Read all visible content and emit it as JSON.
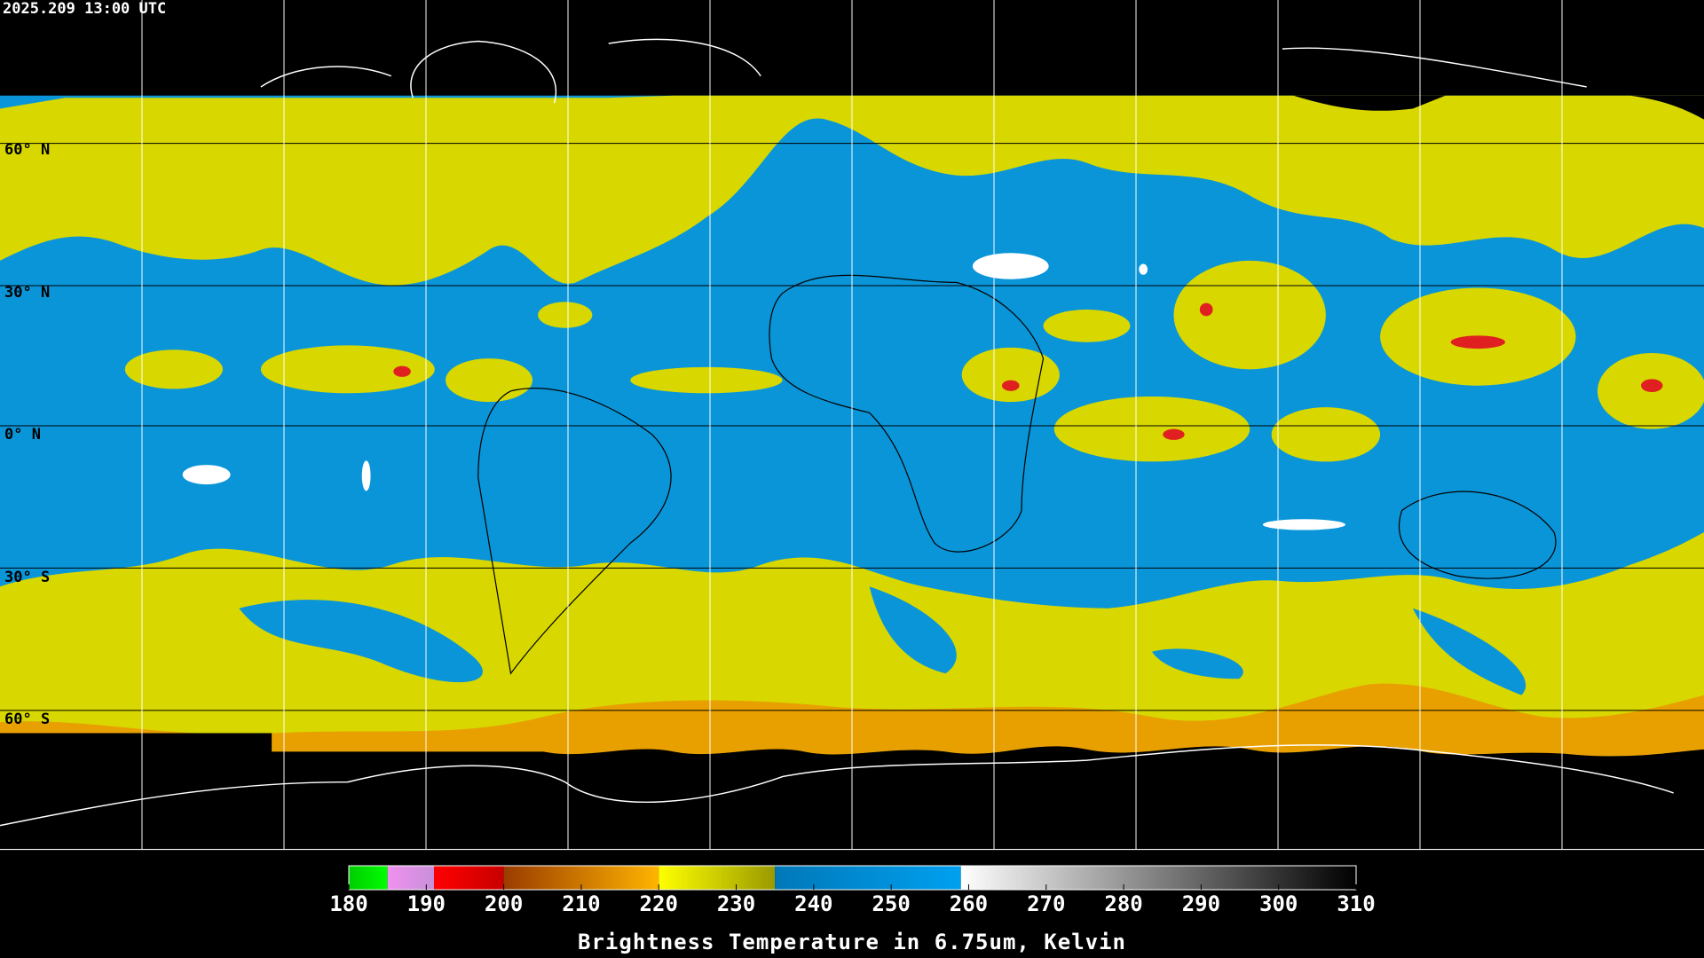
{
  "header": {
    "timestamp": "2025.209 13:00 UTC"
  },
  "map": {
    "latitude_labels": [
      "60° N",
      "30° N",
      "0° N",
      "30° S",
      "60° S"
    ]
  },
  "colorbar": {
    "title": "Brightness Temperature in 6.75um, Kelvin",
    "range": [
      180,
      310
    ],
    "ticks": [
      180,
      190,
      200,
      210,
      220,
      230,
      240,
      250,
      260,
      270,
      280,
      290,
      300,
      310
    ],
    "segments": [
      {
        "from": 180,
        "to": 185,
        "colors": [
          "#00cc00",
          "#00ff00"
        ]
      },
      {
        "from": 185,
        "to": 191,
        "colors": [
          "#f090f0",
          "#c890d8"
        ]
      },
      {
        "from": 191,
        "to": 200,
        "colors": [
          "#ff0000",
          "#c80000"
        ]
      },
      {
        "from": 200,
        "to": 220,
        "colors": [
          "#9a3c00",
          "#ffb400"
        ]
      },
      {
        "from": 220,
        "to": 235,
        "colors": [
          "#ffff00",
          "#9a9a00"
        ]
      },
      {
        "from": 235,
        "to": 259,
        "colors": [
          "#0078b8",
          "#00a0f0"
        ]
      },
      {
        "from": 259,
        "to": 310,
        "colors": [
          "#ffffff",
          "#000000"
        ]
      }
    ]
  }
}
